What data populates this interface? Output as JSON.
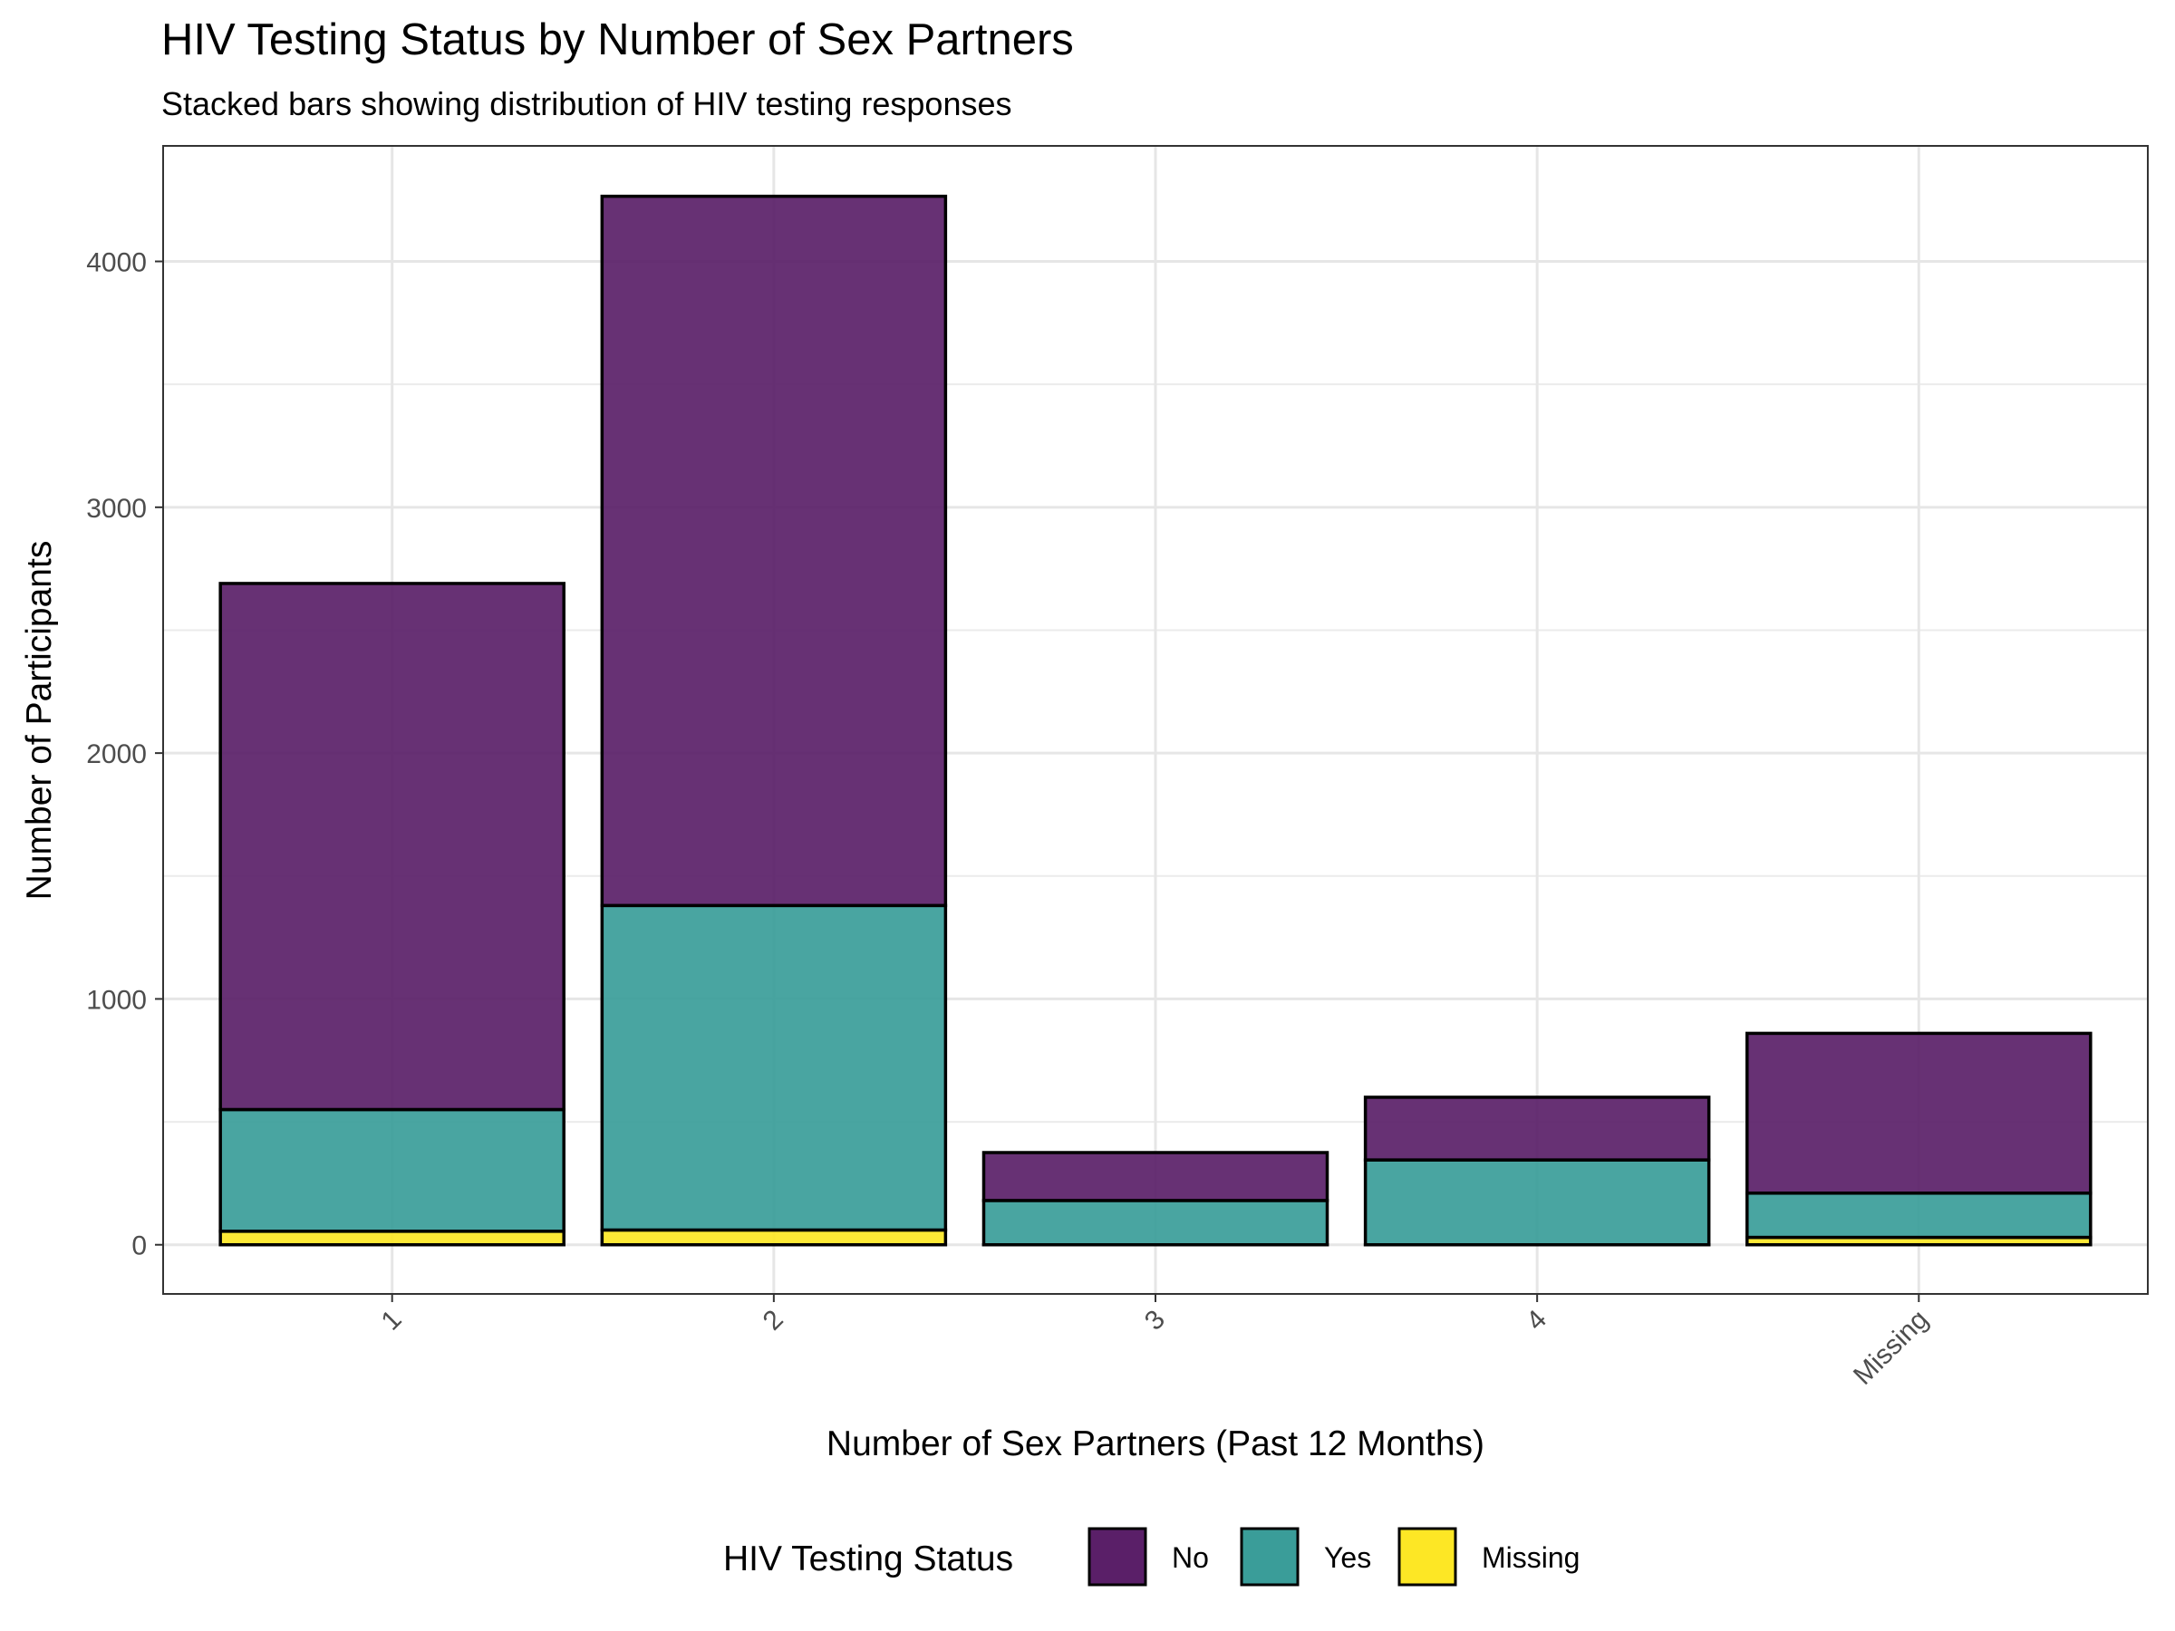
{
  "chart_data": {
    "type": "bar",
    "stacked": true,
    "title": "HIV Testing Status by Number of Sex Partners",
    "subtitle": "Stacked bars showing distribution of HIV testing responses",
    "xlabel": "Number of Sex Partners (Past 12 Months)",
    "ylabel": "Number of Participants",
    "categories": [
      "1",
      "2",
      "3",
      "4",
      "Missing"
    ],
    "series": [
      {
        "name": "Missing",
        "color": "#FDE725",
        "values": [
          55,
          60,
          0,
          0,
          30
        ]
      },
      {
        "name": "Yes",
        "color": "#3A9D99",
        "values": [
          495,
          1320,
          180,
          345,
          180
        ]
      },
      {
        "name": "No",
        "color": "#5A1F68",
        "values": [
          2140,
          2885,
          195,
          255,
          650
        ]
      }
    ],
    "ylim": [
      -200,
      4470
    ],
    "yticks": [
      0,
      1000,
      2000,
      3000,
      4000
    ],
    "grid": true,
    "legend": {
      "title": "HIV Testing Status",
      "position": "bottom",
      "items": [
        {
          "label": "No",
          "color": "#5A1F68"
        },
        {
          "label": "Yes",
          "color": "#3A9D99"
        },
        {
          "label": "Missing",
          "color": "#FDE725"
        }
      ]
    }
  }
}
